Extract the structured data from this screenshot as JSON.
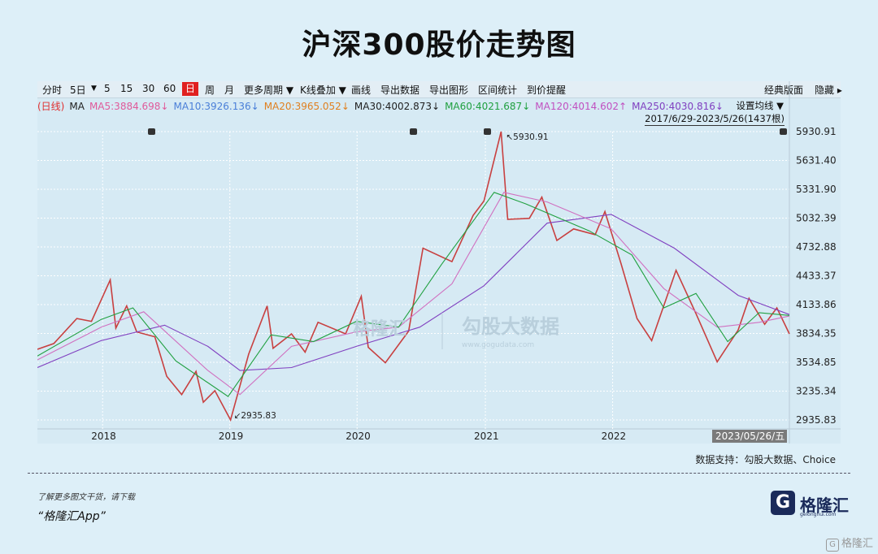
{
  "title": "沪深300股价走势图",
  "toolbar": {
    "items": [
      "分时",
      "5日",
      "▼",
      "5",
      "15",
      "30",
      "60",
      "日",
      "周",
      "月",
      "更多周期 ▼",
      "K线叠加 ▼",
      "画线",
      "导出数据",
      "导出图形",
      "区间统计",
      "到价提醒"
    ],
    "active": "日",
    "right_items": [
      "经典版面",
      "隐藏 ▸"
    ]
  },
  "ma_row": {
    "label": "(日线)",
    "ma": "MA",
    "items": [
      {
        "text": "MA5:3884.698↓",
        "color": "#e05a9a"
      },
      {
        "text": "MA10:3926.136↓",
        "color": "#4a7fd8"
      },
      {
        "text": "MA20:3965.052↓",
        "color": "#e08020"
      },
      {
        "text": "MA30:4002.873↓",
        "color": "#222222"
      },
      {
        "text": "MA60:4021.687↓",
        "color": "#20a040"
      },
      {
        "text": "MA120:4014.602↑",
        "color": "#c050c0"
      },
      {
        "text": "MA250:4030.816↓",
        "color": "#8040c0"
      }
    ],
    "setting": "设置均线 ▼",
    "range": "2017/6/29-2023/5/26(1437根)"
  },
  "watermark": {
    "left": "格隆汇",
    "right": "勾股大数据",
    "url": "www.gogudata.com"
  },
  "chart_data": {
    "type": "line",
    "title": "沪深300股价走势图",
    "y_ticks": [
      5930.91,
      5631.4,
      5331.9,
      5032.39,
      4732.88,
      4433.37,
      4133.86,
      3834.35,
      3534.85,
      3235.34,
      2935.83
    ],
    "ylim": [
      2935.83,
      5930.91
    ],
    "x_labels": [
      "2018",
      "2019",
      "2020",
      "2021",
      "2022"
    ],
    "x_cursor_label": "2023/05/26/五",
    "annotations": [
      {
        "text": "5930.91",
        "date": "2021-02-18"
      },
      {
        "text": "2935.83",
        "date": "2019-01-04"
      }
    ],
    "series": [
      {
        "name": "price",
        "color": "#c84040",
        "points": [
          [
            "2017-06-29",
            3670
          ],
          [
            "2017-08-15",
            3730
          ],
          [
            "2017-10-20",
            3990
          ],
          [
            "2017-12-01",
            3960
          ],
          [
            "2018-01-24",
            4390
          ],
          [
            "2018-02-09",
            3890
          ],
          [
            "2018-03-12",
            4120
          ],
          [
            "2018-04-10",
            3850
          ],
          [
            "2018-06-01",
            3800
          ],
          [
            "2018-07-05",
            3390
          ],
          [
            "2018-08-17",
            3200
          ],
          [
            "2018-09-27",
            3440
          ],
          [
            "2018-10-18",
            3120
          ],
          [
            "2018-11-20",
            3240
          ],
          [
            "2019-01-04",
            2935.83
          ],
          [
            "2019-02-25",
            3620
          ],
          [
            "2019-04-19",
            4120
          ],
          [
            "2019-05-06",
            3680
          ],
          [
            "2019-06-28",
            3830
          ],
          [
            "2019-08-06",
            3640
          ],
          [
            "2019-09-12",
            3950
          ],
          [
            "2019-11-30",
            3830
          ],
          [
            "2020-01-14",
            4220
          ],
          [
            "2020-02-03",
            3690
          ],
          [
            "2020-03-23",
            3530
          ],
          [
            "2020-05-29",
            3860
          ],
          [
            "2020-07-09",
            4720
          ],
          [
            "2020-09-30",
            4580
          ],
          [
            "2020-11-30",
            5060
          ],
          [
            "2020-12-31",
            5210
          ],
          [
            "2021-02-18",
            5930.91
          ],
          [
            "2021-03-09",
            5020
          ],
          [
            "2021-05-10",
            5030
          ],
          [
            "2021-06-15",
            5250
          ],
          [
            "2021-07-28",
            4800
          ],
          [
            "2021-09-14",
            4920
          ],
          [
            "2021-11-15",
            4860
          ],
          [
            "2021-12-13",
            5100
          ],
          [
            "2022-01-28",
            4560
          ],
          [
            "2022-03-15",
            3990
          ],
          [
            "2022-04-26",
            3760
          ],
          [
            "2022-07-05",
            4490
          ],
          [
            "2022-08-31",
            4040
          ],
          [
            "2022-10-31",
            3540
          ],
          [
            "2022-12-30",
            3870
          ],
          [
            "2023-01-30",
            4200
          ],
          [
            "2023-03-16",
            3930
          ],
          [
            "2023-04-20",
            4100
          ],
          [
            "2023-05-26",
            3830
          ]
        ]
      },
      {
        "name": "MA250",
        "color": "#8040c0",
        "points": [
          [
            "2017-06-29",
            3480
          ],
          [
            "2017-12-29",
            3760
          ],
          [
            "2018-06-29",
            3920
          ],
          [
            "2018-10-31",
            3700
          ],
          [
            "2019-01-31",
            3450
          ],
          [
            "2019-06-28",
            3480
          ],
          [
            "2019-12-31",
            3700
          ],
          [
            "2020-06-30",
            3900
          ],
          [
            "2020-12-31",
            4330
          ],
          [
            "2021-06-30",
            4980
          ],
          [
            "2021-12-31",
            5070
          ],
          [
            "2022-06-30",
            4720
          ],
          [
            "2022-12-30",
            4230
          ],
          [
            "2023-05-26",
            4030.816
          ]
        ]
      },
      {
        "name": "MA120",
        "color": "#d070c0",
        "points": [
          [
            "2017-06-29",
            3560
          ],
          [
            "2017-12-29",
            3900
          ],
          [
            "2018-04-30",
            4060
          ],
          [
            "2018-10-31",
            3450
          ],
          [
            "2019-01-31",
            3200
          ],
          [
            "2019-06-28",
            3700
          ],
          [
            "2019-12-31",
            3850
          ],
          [
            "2020-04-30",
            3900
          ],
          [
            "2020-09-30",
            4350
          ],
          [
            "2021-02-26",
            5300
          ],
          [
            "2021-06-30",
            5200
          ],
          [
            "2021-12-31",
            4920
          ],
          [
            "2022-05-31",
            4300
          ],
          [
            "2022-10-31",
            3900
          ],
          [
            "2023-02-28",
            3950
          ],
          [
            "2023-05-26",
            4014.602
          ]
        ]
      },
      {
        "name": "MA60",
        "color": "#20a040",
        "points": [
          [
            "2017-06-29",
            3600
          ],
          [
            "2017-12-29",
            3980
          ],
          [
            "2018-03-30",
            4100
          ],
          [
            "2018-07-31",
            3550
          ],
          [
            "2018-12-28",
            3180
          ],
          [
            "2019-04-30",
            3820
          ],
          [
            "2019-08-30",
            3750
          ],
          [
            "2019-12-31",
            3960
          ],
          [
            "2020-04-30",
            3900
          ],
          [
            "2020-08-31",
            4550
          ],
          [
            "2021-01-29",
            5300
          ],
          [
            "2021-04-30",
            5180
          ],
          [
            "2021-10-29",
            4900
          ],
          [
            "2022-02-28",
            4650
          ],
          [
            "2022-05-31",
            4100
          ],
          [
            "2022-08-31",
            4250
          ],
          [
            "2022-11-30",
            3750
          ],
          [
            "2023-02-28",
            4050
          ],
          [
            "2023-05-26",
            4021.687
          ]
        ]
      }
    ]
  },
  "source": "数据支持：勾股大数据、Choice",
  "footer": {
    "promo_line1": "了解更多图文干货，请下载",
    "promo_line2": "“格隆汇App”",
    "logo_text": "格隆汇",
    "logo_sub": "gelonghui.com",
    "bottom_wm": "格隆汇"
  }
}
